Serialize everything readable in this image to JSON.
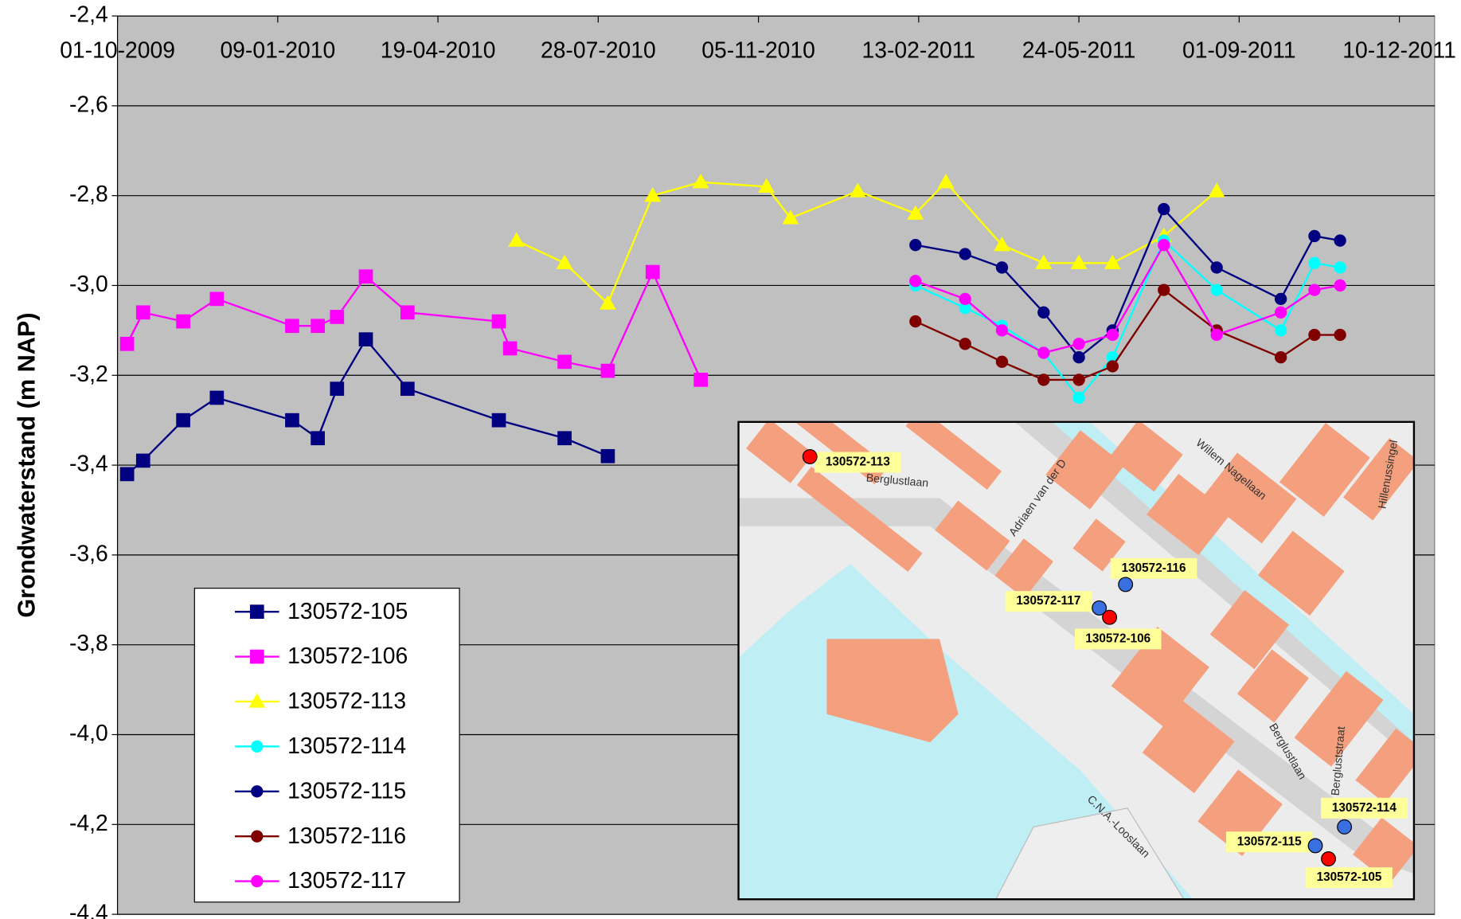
{
  "chart_data": {
    "type": "line",
    "y_label": "Grondwaterstand (m NAP)",
    "xlim": [
      "2009-10-01",
      "2012-01-01"
    ],
    "xticks": [
      {
        "value": "2009-10-01",
        "label": "01-10-2009"
      },
      {
        "value": "2010-01-09",
        "label": "09-01-2010"
      },
      {
        "value": "2010-04-19",
        "label": "19-04-2010"
      },
      {
        "value": "2010-07-28",
        "label": "28-07-2010"
      },
      {
        "value": "2010-11-05",
        "label": "05-11-2010"
      },
      {
        "value": "2011-02-13",
        "label": "13-02-2011"
      },
      {
        "value": "2011-05-24",
        "label": "24-05-2011"
      },
      {
        "value": "2011-09-01",
        "label": "01-09-2011"
      },
      {
        "value": "2011-12-10",
        "label": "10-12-2011"
      }
    ],
    "ylim": [
      -4.4,
      -2.4
    ],
    "yticks": [
      {
        "value": -2.4,
        "label": "-2,4"
      },
      {
        "value": -2.6,
        "label": "-2,6"
      },
      {
        "value": -2.8,
        "label": "-2,8"
      },
      {
        "value": -3.0,
        "label": "-3,0"
      },
      {
        "value": -3.2,
        "label": "-3,2"
      },
      {
        "value": -3.4,
        "label": "-3,4"
      },
      {
        "value": -3.6,
        "label": "-3,6"
      },
      {
        "value": -3.8,
        "label": "-3,8"
      },
      {
        "value": -4.0,
        "label": "-4,0"
      },
      {
        "value": -4.2,
        "label": "-4,2"
      },
      {
        "value": -4.4,
        "label": "-4,4"
      }
    ],
    "grid": true,
    "background": "#c0c0c0",
    "legend": "lower left",
    "series": [
      {
        "name": "130572-105",
        "color": "#000080",
        "marker": "square",
        "x": [
          "2009-10-07",
          "2009-10-17",
          "2009-11-11",
          "2009-12-02",
          "2010-01-18",
          "2010-02-03",
          "2010-02-15",
          "2010-03-05",
          "2010-03-31",
          "2010-05-27",
          "2010-07-07",
          "2010-08-03"
        ],
        "values": [
          -3.42,
          -3.39,
          -3.3,
          -3.25,
          -3.3,
          -3.34,
          -3.23,
          -3.12,
          -3.23,
          -3.3,
          -3.34,
          -3.38
        ]
      },
      {
        "name": "130572-106",
        "color": "#ff00ff",
        "marker": "square",
        "x": [
          "2009-10-07",
          "2009-10-17",
          "2009-11-11",
          "2009-12-02",
          "2010-01-18",
          "2010-02-03",
          "2010-02-15",
          "2010-03-05",
          "2010-03-31",
          "2010-05-27",
          "2010-06-03",
          "2010-07-07",
          "2010-08-03",
          "2010-08-31",
          "2010-09-30"
        ],
        "values": [
          -3.13,
          -3.06,
          -3.08,
          -3.03,
          -3.09,
          -3.09,
          -3.07,
          -2.98,
          -3.06,
          -3.08,
          -3.14,
          -3.17,
          -3.19,
          -2.97,
          -3.21
        ]
      },
      {
        "name": "130572-113",
        "color": "#ffff00",
        "marker": "triangle",
        "x": [
          "2010-06-07",
          "2010-07-07",
          "2010-08-03",
          "2010-08-31",
          "2010-09-30",
          "2010-11-10",
          "2010-11-25",
          "2011-01-06",
          "2011-02-11",
          "2011-03-02",
          "2011-04-06",
          "2011-05-02",
          "2011-05-24",
          "2011-06-14",
          "2011-07-16",
          "2011-08-18"
        ],
        "values": [
          -2.9,
          -2.95,
          -3.04,
          -2.8,
          -2.77,
          -2.78,
          -2.85,
          -2.79,
          -2.84,
          -2.77,
          -2.91,
          -2.95,
          -2.95,
          -2.95,
          -2.89,
          -2.79
        ]
      },
      {
        "name": "130572-114",
        "color": "#00ffff",
        "marker": "circle",
        "x": [
          "2011-02-11",
          "2011-03-14",
          "2011-04-06",
          "2011-05-02",
          "2011-05-24",
          "2011-06-14",
          "2011-07-16",
          "2011-08-18",
          "2011-09-27",
          "2011-10-18",
          "2011-11-03"
        ],
        "values": [
          -3.0,
          -3.05,
          -3.09,
          -3.15,
          -3.25,
          -3.16,
          -2.9,
          -3.01,
          -3.1,
          -2.95,
          -2.96
        ]
      },
      {
        "name": "130572-115",
        "color": "#000080",
        "marker": "circle",
        "x": [
          "2011-02-11",
          "2011-03-14",
          "2011-04-06",
          "2011-05-02",
          "2011-05-24",
          "2011-06-14",
          "2011-07-16",
          "2011-08-18",
          "2011-09-27",
          "2011-10-18",
          "2011-11-03"
        ],
        "values": [
          -2.91,
          -2.93,
          -2.96,
          -3.06,
          -3.16,
          -3.1,
          -2.83,
          -2.96,
          -3.03,
          -2.89,
          -2.9
        ]
      },
      {
        "name": "130572-116",
        "color": "#800000",
        "marker": "circle",
        "x": [
          "2011-02-11",
          "2011-03-14",
          "2011-04-06",
          "2011-05-02",
          "2011-05-24",
          "2011-06-14",
          "2011-07-16",
          "2011-08-18",
          "2011-09-27",
          "2011-10-18",
          "2011-11-03"
        ],
        "values": [
          -3.08,
          -3.13,
          -3.17,
          -3.21,
          -3.21,
          -3.18,
          -3.01,
          -3.1,
          -3.16,
          -3.11,
          -3.11
        ]
      },
      {
        "name": "130572-117",
        "color": "#ff00ff",
        "marker": "circle",
        "x": [
          "2011-02-11",
          "2011-03-14",
          "2011-04-06",
          "2011-05-02",
          "2011-05-24",
          "2011-06-14",
          "2011-07-16",
          "2011-08-18",
          "2011-09-27",
          "2011-10-18",
          "2011-11-03"
        ],
        "values": [
          -2.99,
          -3.03,
          -3.1,
          -3.15,
          -3.13,
          -3.11,
          -2.91,
          -3.11,
          -3.06,
          -3.01,
          -3.0
        ]
      }
    ]
  },
  "map": {
    "wells": [
      {
        "label": "130572-113",
        "color": "#ff0000"
      },
      {
        "label": "130572-116",
        "color": "#3a6fe0"
      },
      {
        "label": "130572-117",
        "color": "#3a6fe0"
      },
      {
        "label": "130572-106",
        "color": "#ff0000"
      },
      {
        "label": "130572-114",
        "color": "#3a6fe0"
      },
      {
        "label": "130572-115",
        "color": "#3a6fe0"
      },
      {
        "label": "130572-105",
        "color": "#ff0000"
      }
    ],
    "streets": [
      "Berglustlaan",
      "Adriaen van der D",
      "Willem Nagellaan",
      "Hillenussingel",
      "Berglustlaan",
      "Bergluststraat",
      "C.N.A.-Looslaan"
    ]
  }
}
